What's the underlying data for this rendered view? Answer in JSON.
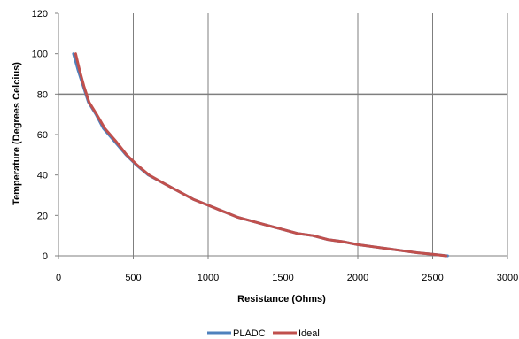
{
  "chart_data": {
    "type": "line",
    "title": "",
    "xlabel": "Resistance (Ohms)",
    "ylabel": "Temperature (Degrees Celcius)",
    "xlim": [
      0,
      3000
    ],
    "ylim": [
      0,
      120
    ],
    "xticks": [
      0,
      500,
      1000,
      1500,
      2000,
      2500,
      3000
    ],
    "yticks": [
      0,
      20,
      40,
      60,
      80,
      100,
      120
    ],
    "grid": "vertical gridlines plus a horizontal line at 80",
    "legend_position": "bottom",
    "series": [
      {
        "name": "PLADC",
        "color": "#4f81bd",
        "points": [
          [
            100,
            100
          ],
          [
            130,
            92
          ],
          [
            165,
            84
          ],
          [
            200,
            76
          ],
          [
            250,
            70
          ],
          [
            300,
            63
          ],
          [
            370,
            57
          ],
          [
            450,
            50
          ],
          [
            520,
            45
          ],
          [
            600,
            40
          ],
          [
            700,
            36
          ],
          [
            800,
            32
          ],
          [
            900,
            28
          ],
          [
            1000,
            25
          ],
          [
            1100,
            22
          ],
          [
            1200,
            19
          ],
          [
            1300,
            17
          ],
          [
            1400,
            15
          ],
          [
            1500,
            13
          ],
          [
            1600,
            11
          ],
          [
            1700,
            10
          ],
          [
            1800,
            8
          ],
          [
            1900,
            7
          ],
          [
            2000,
            5.5
          ],
          [
            2100,
            4.5
          ],
          [
            2200,
            3.5
          ],
          [
            2300,
            2.5
          ],
          [
            2400,
            1.5
          ],
          [
            2500,
            0.8
          ],
          [
            2600,
            0
          ]
        ]
      },
      {
        "name": "Ideal",
        "color": "#c0504d",
        "points": [
          [
            115,
            100
          ],
          [
            140,
            92
          ],
          [
            170,
            84
          ],
          [
            205,
            76
          ],
          [
            255,
            70
          ],
          [
            310,
            63
          ],
          [
            380,
            57
          ],
          [
            455,
            50
          ],
          [
            525,
            45
          ],
          [
            605,
            40
          ],
          [
            700,
            36
          ],
          [
            800,
            32
          ],
          [
            900,
            28
          ],
          [
            1000,
            25
          ],
          [
            1100,
            22
          ],
          [
            1200,
            19
          ],
          [
            1300,
            17
          ],
          [
            1400,
            15
          ],
          [
            1500,
            13
          ],
          [
            1600,
            11
          ],
          [
            1700,
            10
          ],
          [
            1800,
            8
          ],
          [
            1900,
            7
          ],
          [
            2000,
            5.5
          ],
          [
            2100,
            4.5
          ],
          [
            2200,
            3.5
          ],
          [
            2300,
            2.5
          ],
          [
            2400,
            1.5
          ],
          [
            2500,
            0.8
          ],
          [
            2590,
            0
          ]
        ]
      }
    ]
  }
}
